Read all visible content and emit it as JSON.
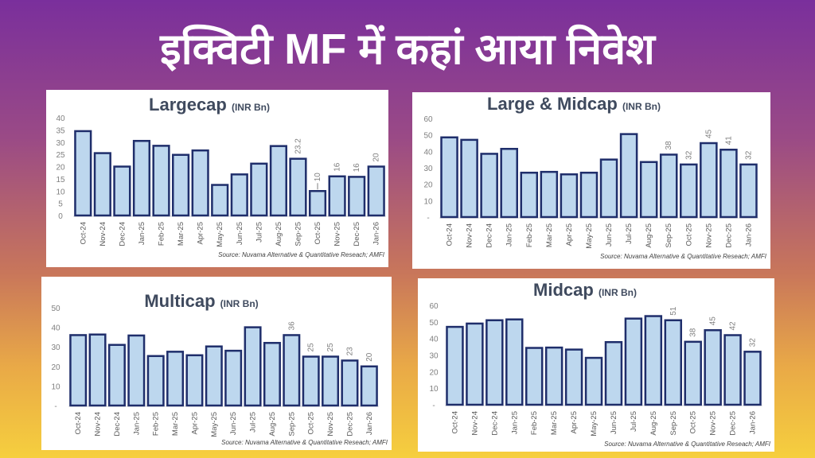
{
  "header": {
    "title": "इक्विटी MF में कहां आया निवेश"
  },
  "colors": {
    "bar_fill": "#bdd7ee",
    "bar_stroke": "#1f2e6b",
    "title": "#3f4a5e",
    "axis_text": "#7f7f7f"
  },
  "chart_data": [
    {
      "type": "bar",
      "title": "Largecap",
      "unit": "(INR Bn)",
      "categories": [
        "Oct-24",
        "Nov-24",
        "Dec-24",
        "Jan-25",
        "Feb-25",
        "Mar-25",
        "Apr-25",
        "May-25",
        "Jun-25",
        "Jul-25",
        "Aug-25",
        "Sep-25",
        "Oct-25",
        "Nov-25",
        "Dec-25",
        "Jan-26"
      ],
      "values": [
        34.5,
        25.5,
        20,
        30.5,
        28.5,
        24.8,
        26.6,
        12.5,
        16.8,
        21.2,
        28.4,
        23.2,
        10,
        16,
        15.8,
        20
      ],
      "data_labels": [
        null,
        null,
        null,
        null,
        null,
        null,
        null,
        null,
        null,
        null,
        null,
        "23.2",
        "10",
        "16",
        "16",
        "20"
      ],
      "yticks": [
        "0",
        "5",
        "10",
        "15",
        "20",
        "25",
        "30",
        "35",
        "40"
      ],
      "ylim": [
        0,
        40
      ],
      "source": "Source: Nuvama Alternative & Quantitative Reseach; AMFI"
    },
    {
      "type": "bar",
      "title": "Large & Midcap",
      "unit": "(INR Bn)",
      "categories": [
        "Oct-24",
        "Nov-24",
        "Dec-24",
        "Jan-25",
        "Feb-25",
        "Mar-25",
        "Apr-25",
        "May-25",
        "Jun-25",
        "Jul-25",
        "Aug-25",
        "Sep-25",
        "Oct-25",
        "Nov-25",
        "Dec-25",
        "Jan-26"
      ],
      "values": [
        48.5,
        47,
        38.5,
        41.5,
        27,
        27.5,
        26,
        27,
        35,
        50.5,
        33.5,
        38,
        32,
        45,
        41,
        32
      ],
      "data_labels": [
        null,
        null,
        null,
        null,
        null,
        null,
        null,
        null,
        null,
        null,
        null,
        "38",
        "32",
        "45",
        "41",
        "32"
      ],
      "yticks": [
        "-",
        "10",
        "20",
        "30",
        "40",
        "50",
        "60"
      ],
      "ylim": [
        0,
        60
      ],
      "source": "Source: Nuvama Alternative & Quantitative Reseach; AMFI"
    },
    {
      "type": "bar",
      "title": "Multicap",
      "unit": "(INR Bn)",
      "categories": [
        "Oct-24",
        "Nov-24",
        "Dec-24",
        "Jan-25",
        "Feb-25",
        "Mar-25",
        "Apr-25",
        "May-25",
        "Jun-25",
        "Jul-25",
        "Aug-25",
        "Sep-25",
        "Oct-25",
        "Nov-25",
        "Dec-25",
        "Jan-26"
      ],
      "values": [
        36,
        36.3,
        31,
        35.8,
        25.3,
        27.5,
        25.7,
        30.2,
        28,
        40,
        32,
        36,
        25,
        25,
        23,
        20
      ],
      "data_labels": [
        null,
        null,
        null,
        null,
        null,
        null,
        null,
        null,
        null,
        null,
        null,
        "36",
        "25",
        "25",
        "23",
        "20"
      ],
      "yticks": [
        "-",
        "10",
        "20",
        "30",
        "40",
        "50"
      ],
      "ylim": [
        0,
        50
      ],
      "source": "Source: Nuvama Alternative & Quantitative Reseach; AMFI"
    },
    {
      "type": "bar",
      "title": "Midcap",
      "unit": "(INR Bn)",
      "categories": [
        "Oct-24",
        "Nov-24",
        "Dec-24",
        "Jan-25",
        "Feb-25",
        "Mar-25",
        "Apr-25",
        "May-25",
        "Jun-25",
        "Jul-25",
        "Aug-25",
        "Sep-25",
        "Oct-25",
        "Nov-25",
        "Dec-25",
        "Jan-26"
      ],
      "values": [
        47,
        49,
        51,
        51.5,
        34.3,
        34.5,
        33.3,
        28.3,
        37.8,
        52,
        53.5,
        51,
        38,
        45,
        42,
        32
      ],
      "data_labels": [
        null,
        null,
        null,
        null,
        null,
        null,
        null,
        null,
        null,
        null,
        null,
        "51",
        "38",
        "45",
        "42",
        "32"
      ],
      "yticks": [
        "-",
        "10",
        "20",
        "30",
        "40",
        "50",
        "60"
      ],
      "ylim": [
        0,
        60
      ],
      "source": "Source: Nuvama Alternative & Quantitative Reseach; AMFI"
    }
  ]
}
